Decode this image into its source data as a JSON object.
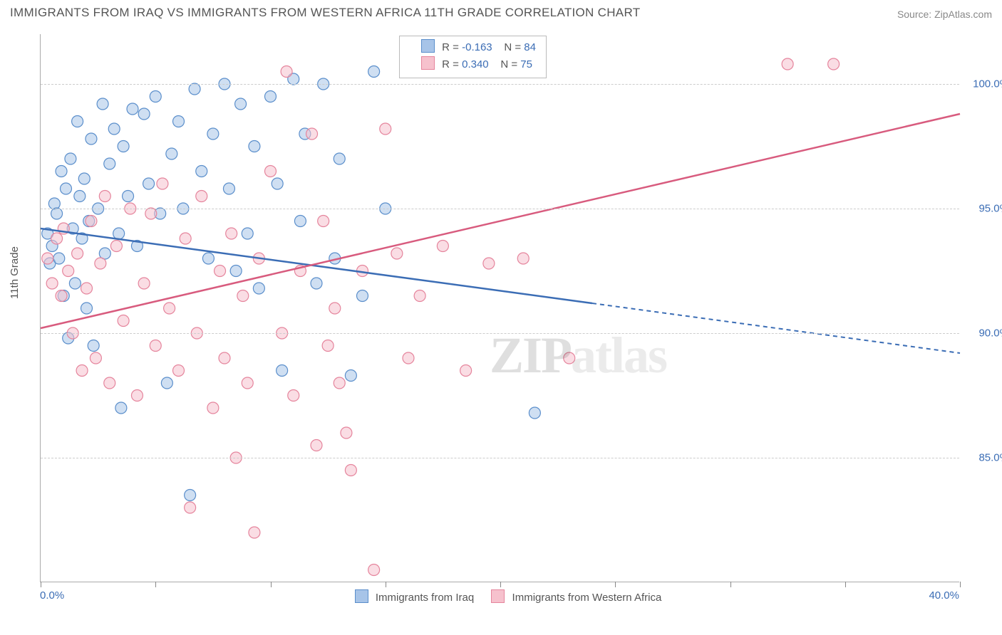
{
  "title": "IMMIGRANTS FROM IRAQ VS IMMIGRANTS FROM WESTERN AFRICA 11TH GRADE CORRELATION CHART",
  "source_label": "Source:",
  "source_name": "ZipAtlas.com",
  "y_axis_label": "11th Grade",
  "watermark": {
    "zip": "ZIP",
    "atlas": "atlas"
  },
  "chart": {
    "type": "scatter",
    "background_color": "#ffffff",
    "grid_color": "#cccccc",
    "axis_color": "#aaaaaa",
    "tick_text_color": "#3b6db5",
    "xlim": [
      0,
      40
    ],
    "ylim": [
      80,
      102
    ],
    "x_ticks": [
      0,
      5,
      10,
      15,
      20,
      25,
      30,
      35,
      40
    ],
    "x_tick_labels": {
      "left": "0.0%",
      "right": "40.0%"
    },
    "y_ticks": [
      85,
      90,
      95,
      100
    ],
    "y_tick_labels": [
      "85.0%",
      "90.0%",
      "95.0%",
      "100.0%"
    ],
    "point_radius": 8,
    "point_opacity": 0.55,
    "series": [
      {
        "name": "Immigrants from Iraq",
        "fill_color": "#a7c4e8",
        "stroke_color": "#5a8ecb",
        "line_color": "#3b6db5",
        "r_value": "-0.163",
        "n_value": "84",
        "trend": {
          "y_start": 94.2,
          "y_end": 89.2,
          "solid_until_x": 24
        },
        "points": [
          [
            0.3,
            94.0
          ],
          [
            0.4,
            92.8
          ],
          [
            0.5,
            93.5
          ],
          [
            0.6,
            95.2
          ],
          [
            0.7,
            94.8
          ],
          [
            0.8,
            93.0
          ],
          [
            0.9,
            96.5
          ],
          [
            1.0,
            91.5
          ],
          [
            1.1,
            95.8
          ],
          [
            1.2,
            89.8
          ],
          [
            1.3,
            97.0
          ],
          [
            1.4,
            94.2
          ],
          [
            1.5,
            92.0
          ],
          [
            1.6,
            98.5
          ],
          [
            1.7,
            95.5
          ],
          [
            1.8,
            93.8
          ],
          [
            1.9,
            96.2
          ],
          [
            2.0,
            91.0
          ],
          [
            2.1,
            94.5
          ],
          [
            2.2,
            97.8
          ],
          [
            2.3,
            89.5
          ],
          [
            2.5,
            95.0
          ],
          [
            2.7,
            99.2
          ],
          [
            2.8,
            93.2
          ],
          [
            3.0,
            96.8
          ],
          [
            3.2,
            98.2
          ],
          [
            3.4,
            94.0
          ],
          [
            3.5,
            87.0
          ],
          [
            3.6,
            97.5
          ],
          [
            3.8,
            95.5
          ],
          [
            4.0,
            99.0
          ],
          [
            4.2,
            93.5
          ],
          [
            4.5,
            98.8
          ],
          [
            4.7,
            96.0
          ],
          [
            5.0,
            99.5
          ],
          [
            5.2,
            94.8
          ],
          [
            5.5,
            88.0
          ],
          [
            5.7,
            97.2
          ],
          [
            6.0,
            98.5
          ],
          [
            6.2,
            95.0
          ],
          [
            6.5,
            83.5
          ],
          [
            6.7,
            99.8
          ],
          [
            7.0,
            96.5
          ],
          [
            7.3,
            93.0
          ],
          [
            7.5,
            98.0
          ],
          [
            8.0,
            100.0
          ],
          [
            8.2,
            95.8
          ],
          [
            8.5,
            92.5
          ],
          [
            8.7,
            99.2
          ],
          [
            9.0,
            94.0
          ],
          [
            9.3,
            97.5
          ],
          [
            9.5,
            91.8
          ],
          [
            10.0,
            99.5
          ],
          [
            10.3,
            96.0
          ],
          [
            10.5,
            88.5
          ],
          [
            11.0,
            100.2
          ],
          [
            11.3,
            94.5
          ],
          [
            11.5,
            98.0
          ],
          [
            12.0,
            92.0
          ],
          [
            12.3,
            100.0
          ],
          [
            12.8,
            93.0
          ],
          [
            13.0,
            97.0
          ],
          [
            13.5,
            88.3
          ],
          [
            14.0,
            91.5
          ],
          [
            14.5,
            100.5
          ],
          [
            15.0,
            95.0
          ],
          [
            21.5,
            86.8
          ]
        ]
      },
      {
        "name": "Immigrants from Western Africa",
        "fill_color": "#f6c1cd",
        "stroke_color": "#e5849c",
        "line_color": "#d85b7e",
        "r_value": "0.340",
        "n_value": "75",
        "trend": {
          "y_start": 90.2,
          "y_end": 98.8,
          "solid_until_x": 40
        },
        "points": [
          [
            0.3,
            93.0
          ],
          [
            0.5,
            92.0
          ],
          [
            0.7,
            93.8
          ],
          [
            0.9,
            91.5
          ],
          [
            1.0,
            94.2
          ],
          [
            1.2,
            92.5
          ],
          [
            1.4,
            90.0
          ],
          [
            1.6,
            93.2
          ],
          [
            1.8,
            88.5
          ],
          [
            2.0,
            91.8
          ],
          [
            2.2,
            94.5
          ],
          [
            2.4,
            89.0
          ],
          [
            2.6,
            92.8
          ],
          [
            2.8,
            95.5
          ],
          [
            3.0,
            88.0
          ],
          [
            3.3,
            93.5
          ],
          [
            3.6,
            90.5
          ],
          [
            3.9,
            95.0
          ],
          [
            4.2,
            87.5
          ],
          [
            4.5,
            92.0
          ],
          [
            4.8,
            94.8
          ],
          [
            5.0,
            89.5
          ],
          [
            5.3,
            96.0
          ],
          [
            5.6,
            91.0
          ],
          [
            6.0,
            88.5
          ],
          [
            6.3,
            93.8
          ],
          [
            6.5,
            83.0
          ],
          [
            6.8,
            90.0
          ],
          [
            7.0,
            95.5
          ],
          [
            7.5,
            87.0
          ],
          [
            7.8,
            92.5
          ],
          [
            8.0,
            89.0
          ],
          [
            8.3,
            94.0
          ],
          [
            8.5,
            85.0
          ],
          [
            8.8,
            91.5
          ],
          [
            9.0,
            88.0
          ],
          [
            9.3,
            82.0
          ],
          [
            9.5,
            93.0
          ],
          [
            10.0,
            96.5
          ],
          [
            10.5,
            90.0
          ],
          [
            10.7,
            100.5
          ],
          [
            11.0,
            87.5
          ],
          [
            11.3,
            92.5
          ],
          [
            11.8,
            98.0
          ],
          [
            12.0,
            85.5
          ],
          [
            12.3,
            94.5
          ],
          [
            12.5,
            89.5
          ],
          [
            12.8,
            91.0
          ],
          [
            13.0,
            88.0
          ],
          [
            13.3,
            86.0
          ],
          [
            13.5,
            84.5
          ],
          [
            14.0,
            92.5
          ],
          [
            14.5,
            80.5
          ],
          [
            15.0,
            98.2
          ],
          [
            15.5,
            93.2
          ],
          [
            16.0,
            89.0
          ],
          [
            16.5,
            91.5
          ],
          [
            17.5,
            93.5
          ],
          [
            18.5,
            88.5
          ],
          [
            19.5,
            92.8
          ],
          [
            21.0,
            93.0
          ],
          [
            23.0,
            89.0
          ],
          [
            32.5,
            100.8
          ],
          [
            34.5,
            100.8
          ]
        ]
      }
    ]
  },
  "top_legend_label_r": "R =",
  "top_legend_label_n": "N ="
}
